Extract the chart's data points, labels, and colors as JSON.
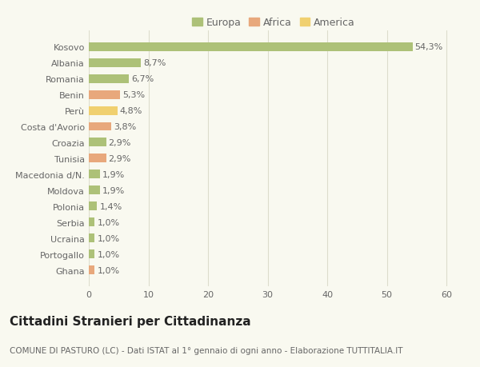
{
  "countries": [
    "Kosovo",
    "Albania",
    "Romania",
    "Benin",
    "Perù",
    "Costa d'Avorio",
    "Croazia",
    "Tunisia",
    "Macedonia d/N.",
    "Moldova",
    "Polonia",
    "Serbia",
    "Ucraina",
    "Portogallo",
    "Ghana"
  ],
  "values": [
    54.3,
    8.7,
    6.7,
    5.3,
    4.8,
    3.8,
    2.9,
    2.9,
    1.9,
    1.9,
    1.4,
    1.0,
    1.0,
    1.0,
    1.0
  ],
  "labels": [
    "54,3%",
    "8,7%",
    "6,7%",
    "5,3%",
    "4,8%",
    "3,8%",
    "2,9%",
    "2,9%",
    "1,9%",
    "1,9%",
    "1,4%",
    "1,0%",
    "1,0%",
    "1,0%",
    "1,0%"
  ],
  "continents": [
    "Europa",
    "Europa",
    "Europa",
    "Africa",
    "America",
    "Africa",
    "Europa",
    "Africa",
    "Europa",
    "Europa",
    "Europa",
    "Europa",
    "Europa",
    "Europa",
    "Africa"
  ],
  "colors": {
    "Europa": "#adc178",
    "Africa": "#e8a87c",
    "America": "#f0d070"
  },
  "title": "Cittadini Stranieri per Cittadinanza",
  "subtitle": "COMUNE DI PASTURO (LC) - Dati ISTAT al 1° gennaio di ogni anno - Elaborazione TUTTITALIA.IT",
  "xlabel_ticks": [
    0,
    10,
    20,
    30,
    40,
    50,
    60
  ],
  "xlim": [
    0,
    62
  ],
  "background_color": "#f9f9f0",
  "grid_color": "#ddddcc",
  "bar_height": 0.55,
  "title_fontsize": 11,
  "subtitle_fontsize": 7.5,
  "tick_fontsize": 8,
  "label_fontsize": 8,
  "legend_fontsize": 9
}
